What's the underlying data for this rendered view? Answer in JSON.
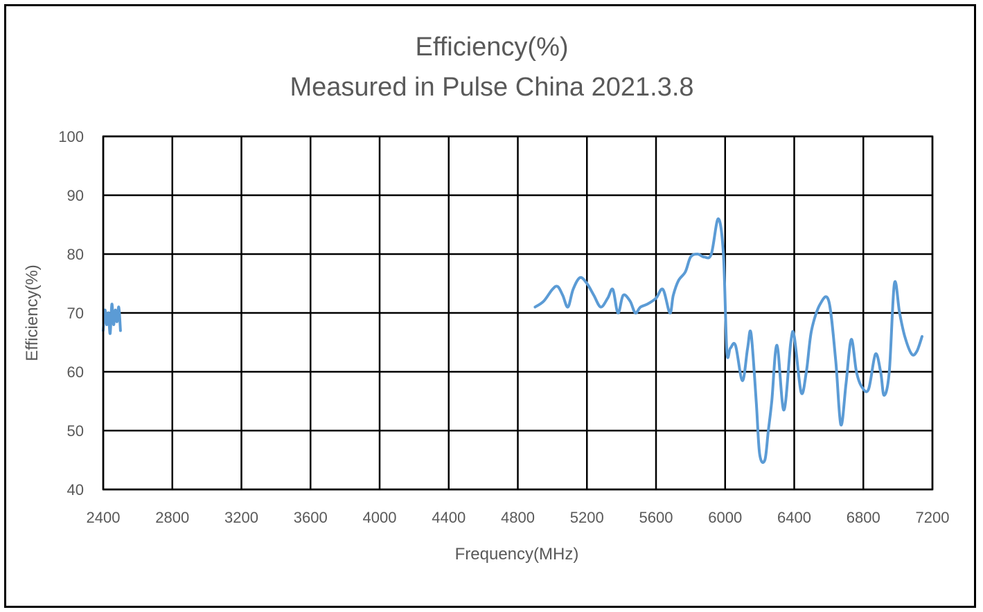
{
  "chart_data": {
    "type": "line",
    "title": "Efficiency(%)",
    "subtitle": "Measured in Pulse China 2021.3.8",
    "xlabel": "Frequency(MHz)",
    "ylabel": "Efficiency(%)",
    "xlim": [
      2400,
      7200
    ],
    "ylim": [
      40,
      100
    ],
    "x_ticks": [
      2400,
      2800,
      3200,
      3600,
      4000,
      4400,
      4800,
      5200,
      5600,
      6000,
      6400,
      6800,
      7200
    ],
    "y_ticks": [
      40,
      50,
      60,
      70,
      80,
      90,
      100
    ],
    "grid": true,
    "legend": "none",
    "series": [
      {
        "color": "#5b9bd5",
        "segments": [
          {
            "x": [
              2400,
              2410,
              2420,
              2430,
              2440,
              2450,
              2460,
              2470,
              2480,
              2490,
              2500
            ],
            "y": [
              67,
              70.5,
              68,
              70,
              66.5,
              71.5,
              68,
              70.5,
              68.5,
              71,
              67
            ]
          },
          {
            "x": [
              4900,
              4950,
              5000,
              5030,
              5060,
              5090,
              5120,
              5160,
              5200,
              5240,
              5280,
              5320,
              5350,
              5380,
              5410,
              5450,
              5480,
              5510,
              5550,
              5600,
              5640,
              5680,
              5700,
              5730,
              5770,
              5800,
              5840,
              5880,
              5920,
              5960,
              5990,
              6010,
              6030,
              6060,
              6100,
              6130,
              6150,
              6180,
              6200,
              6230,
              6250,
              6270,
              6300,
              6340,
              6380,
              6400,
              6440,
              6470,
              6500,
              6550,
              6600,
              6640,
              6670,
              6700,
              6730,
              6760,
              6790,
              6830,
              6870,
              6900,
              6920,
              6950,
              6980,
              7010,
              7040,
              7080,
              7110,
              7140
            ],
            "y": [
              71,
              72,
              74,
              74.5,
              73,
              71,
              74,
              76,
              75,
              73,
              71,
              72.5,
              74,
              70,
              73,
              72,
              70,
              71,
              71.5,
              72.5,
              74,
              70,
              73,
              75.5,
              77,
              79.5,
              80,
              79.5,
              80,
              86,
              80,
              63.5,
              64,
              64.5,
              58.5,
              64,
              66.5,
              55,
              46,
              45,
              50,
              55,
              64.5,
              53.5,
              65,
              66,
              56.5,
              60,
              67,
              71.5,
              72,
              62,
              51,
              58,
              65.5,
              60,
              57.5,
              57,
              63,
              60,
              56,
              60,
              75,
              70,
              66,
              63,
              63.5,
              66
            ]
          }
        ]
      }
    ]
  }
}
